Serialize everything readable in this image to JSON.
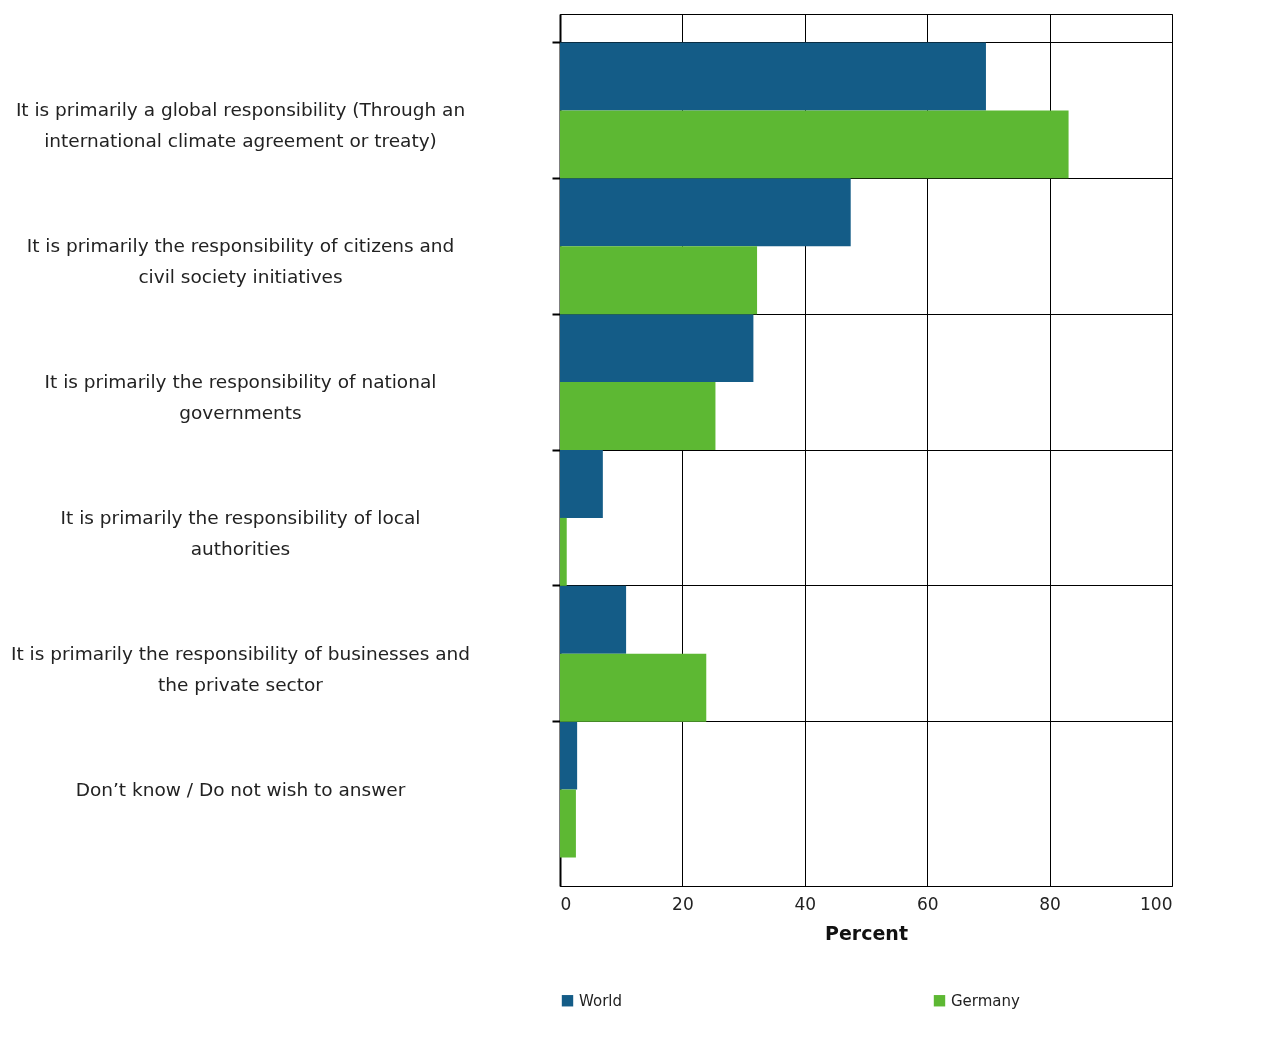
{
  "chart_data": {
    "type": "bar",
    "orientation": "horizontal",
    "xlabel": "Percent",
    "categories": [
      "It is primarily a global responsibility (Through an international climate agreement or treaty)",
      "It is primarily the responsibility of citizens and civil society initiatives",
      "It is primarily the responsibility of national governments",
      "It is primarily the responsibility of local authorities",
      "It is primarily the responsibility of businesses and the private sector",
      "Don’t know / Do not wish to answer"
    ],
    "series": [
      {
        "name": "World",
        "color": "#145c87",
        "values": [
          69.6,
          47.5,
          31.6,
          7.0,
          10.8,
          2.8
        ]
      },
      {
        "name": "Germany",
        "color": "#5db833",
        "values": [
          83.1,
          32.2,
          25.4,
          1.1,
          23.9,
          2.6
        ]
      }
    ],
    "xlim": [
      0,
      100
    ],
    "xticks": [
      0,
      20,
      40,
      60,
      80,
      100
    ],
    "grid": true,
    "legend": "bottom"
  }
}
